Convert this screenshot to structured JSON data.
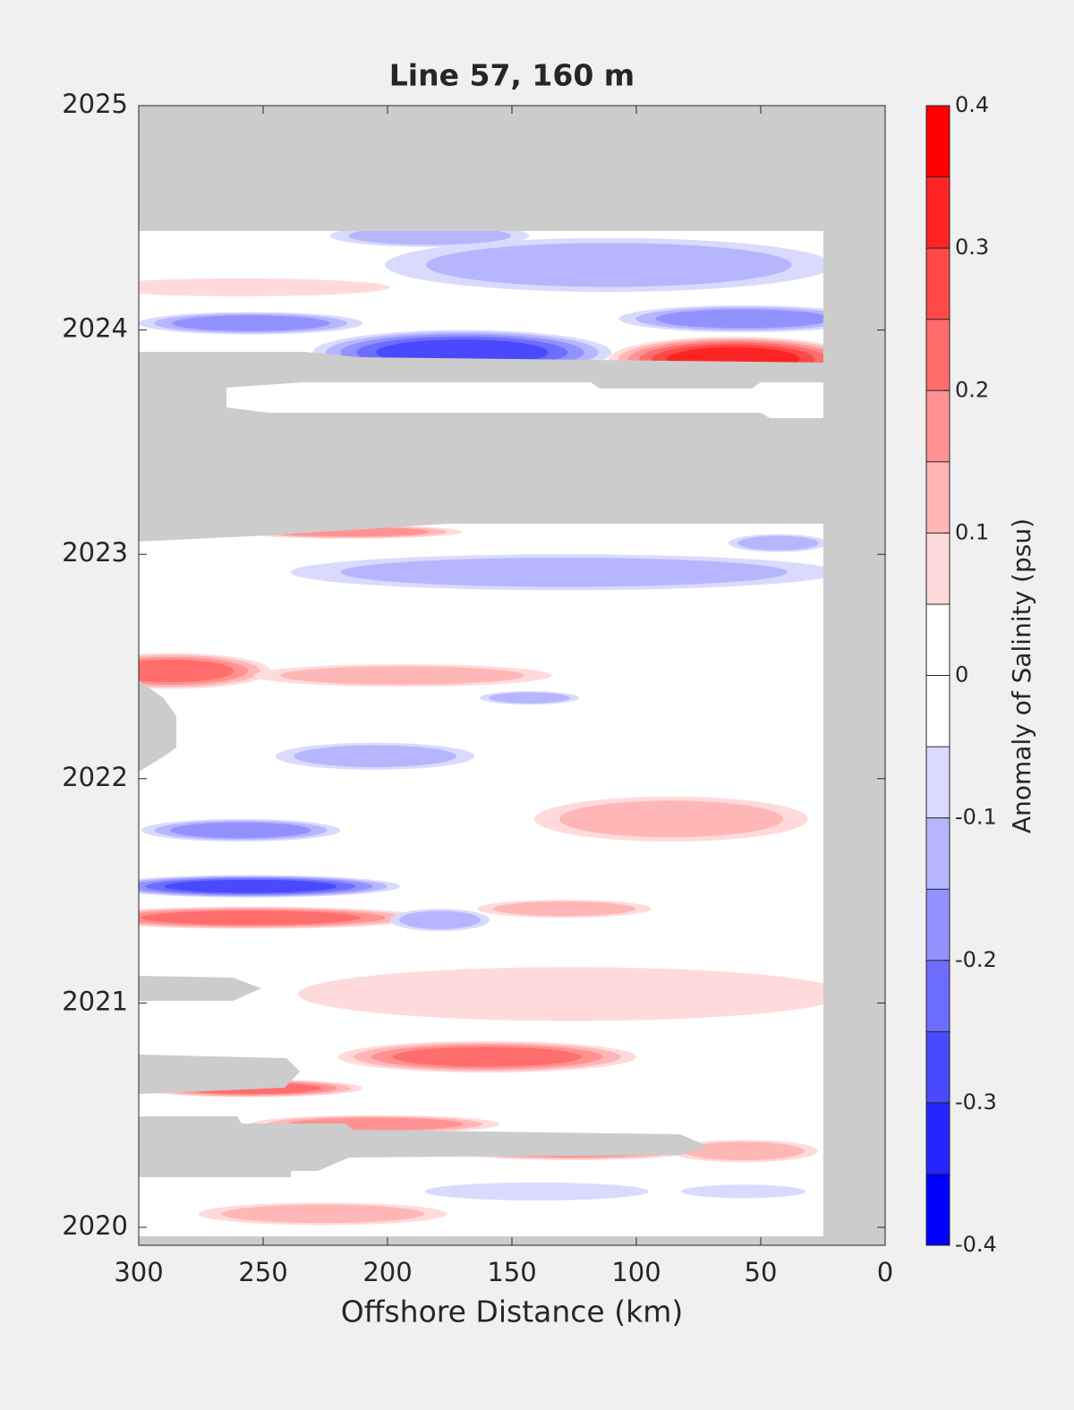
{
  "chart_data": {
    "type": "contour",
    "title": "Line 57, 160 m",
    "xlabel": "Offshore Distance (km)",
    "colorbar_label": "Anomaly of Salinity (psu)",
    "xlim": [
      300,
      0
    ],
    "xticks": [
      300,
      250,
      200,
      150,
      100,
      50,
      0
    ],
    "ylim": [
      2019.92,
      2025
    ],
    "yticks": [
      2020,
      2021,
      2022,
      2023,
      2024,
      2025
    ],
    "clim": [
      -0.4,
      0.4
    ],
    "level_step": 0.05,
    "cticks": [
      -0.4,
      -0.3,
      -0.2,
      -0.1,
      0,
      0.1,
      0.2,
      0.3,
      0.4
    ],
    "colors": [
      "#0000ff",
      "#2424ff",
      "#4949ff",
      "#6d6dff",
      "#9292ff",
      "#b6b6ff",
      "#dadaff",
      "#ffffff",
      "#ffffff",
      "#ffdada",
      "#ffb6b6",
      "#ff9292",
      "#ff6d6d",
      "#ff4949",
      "#ff2424",
      "#ff0000"
    ],
    "missing_color": "#cccccc",
    "features": [
      {
        "x": 61,
        "y": 2023.87,
        "value": 0.35,
        "x_extent": 50,
        "y_extent": 0.1
      },
      {
        "x": 170,
        "y": 2023.9,
        "value": -0.3,
        "x_extent": 60,
        "y_extent": 0.1
      },
      {
        "x": 57,
        "y": 2024.05,
        "value": -0.2,
        "x_extent": 50,
        "y_extent": 0.06
      },
      {
        "x": 255,
        "y": 2024.03,
        "value": -0.2,
        "x_extent": 45,
        "y_extent": 0.05
      },
      {
        "x": 111,
        "y": 2024.29,
        "value": -0.15,
        "x_extent": 90,
        "y_extent": 0.12
      },
      {
        "x": 183,
        "y": 2024.42,
        "value": -0.15,
        "x_extent": 40,
        "y_extent": 0.05
      },
      {
        "x": 259,
        "y": 2024.19,
        "value": 0.1,
        "x_extent": 60,
        "y_extent": 0.04
      },
      {
        "x": 215,
        "y": 2023.1,
        "value": 0.2,
        "x_extent": 45,
        "y_extent": 0.03
      },
      {
        "x": 129,
        "y": 2022.92,
        "value": -0.15,
        "x_extent": 110,
        "y_extent": 0.08
      },
      {
        "x": 43,
        "y": 2023.05,
        "value": -0.15,
        "x_extent": 20,
        "y_extent": 0.04
      },
      {
        "x": 287,
        "y": 2022.48,
        "value": 0.25,
        "x_extent": 40,
        "y_extent": 0.08
      },
      {
        "x": 194,
        "y": 2022.46,
        "value": 0.15,
        "x_extent": 60,
        "y_extent": 0.05
      },
      {
        "x": 205,
        "y": 2022.1,
        "value": -0.15,
        "x_extent": 40,
        "y_extent": 0.06
      },
      {
        "x": 143,
        "y": 2022.36,
        "value": -0.15,
        "x_extent": 20,
        "y_extent": 0.03
      },
      {
        "x": 86,
        "y": 2021.82,
        "value": 0.15,
        "x_extent": 55,
        "y_extent": 0.1
      },
      {
        "x": 259,
        "y": 2021.77,
        "value": -0.2,
        "x_extent": 40,
        "y_extent": 0.05
      },
      {
        "x": 255,
        "y": 2021.52,
        "value": -0.3,
        "x_extent": 60,
        "y_extent": 0.05
      },
      {
        "x": 255,
        "y": 2021.38,
        "value": 0.25,
        "x_extent": 70,
        "y_extent": 0.05
      },
      {
        "x": 179,
        "y": 2021.37,
        "value": -0.15,
        "x_extent": 20,
        "y_extent": 0.05
      },
      {
        "x": 129,
        "y": 2021.42,
        "value": 0.15,
        "x_extent": 35,
        "y_extent": 0.04
      },
      {
        "x": 126,
        "y": 2021.04,
        "value": 0.1,
        "x_extent": 110,
        "y_extent": 0.12
      },
      {
        "x": 160,
        "y": 2020.76,
        "value": 0.25,
        "x_extent": 60,
        "y_extent": 0.07
      },
      {
        "x": 255,
        "y": 2020.62,
        "value": 0.25,
        "x_extent": 45,
        "y_extent": 0.04
      },
      {
        "x": 205,
        "y": 2020.46,
        "value": 0.2,
        "x_extent": 50,
        "y_extent": 0.04
      },
      {
        "x": 126,
        "y": 2020.34,
        "value": 0.2,
        "x_extent": 50,
        "y_extent": 0.04
      },
      {
        "x": 57,
        "y": 2020.34,
        "value": 0.15,
        "x_extent": 30,
        "y_extent": 0.05
      },
      {
        "x": 226,
        "y": 2020.06,
        "value": 0.15,
        "x_extent": 50,
        "y_extent": 0.05
      },
      {
        "x": 140,
        "y": 2020.16,
        "value": -0.1,
        "x_extent": 45,
        "y_extent": 0.04
      },
      {
        "x": 57,
        "y": 2020.16,
        "value": -0.1,
        "x_extent": 25,
        "y_extent": 0.03
      }
    ]
  }
}
